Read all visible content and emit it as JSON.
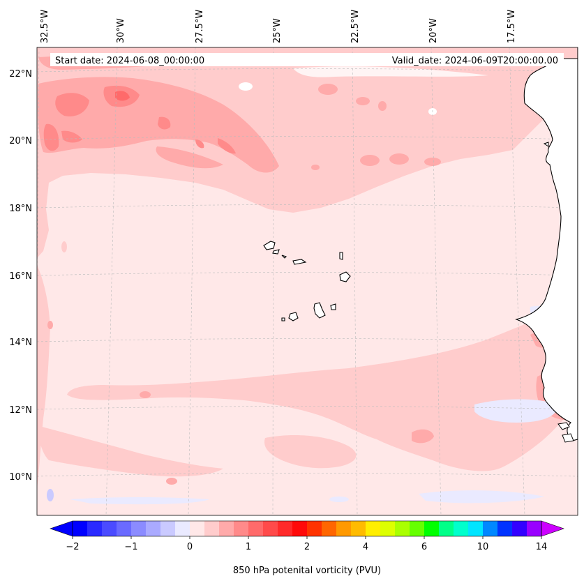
{
  "map": {
    "info": {
      "start_date": "Start date: 2024-06-08_00:00:00",
      "valid_date": "Valid_date: 2024-06-09T20:00:00.00"
    },
    "lon_labels": [
      "32.5°W",
      "30°W",
      "27.5°W",
      "25°W",
      "22.5°W",
      "20°W",
      "17.5°W"
    ],
    "lat_labels": [
      "22°N",
      "20°N",
      "18°N",
      "16°N",
      "14°N",
      "12°N",
      "10°N"
    ]
  },
  "colorbar": {
    "label": "850 hPa potenital vorticity (PVU)",
    "tick_labels": [
      "−2",
      "−1",
      "0",
      "1",
      "2",
      "4",
      "6",
      "10",
      "14"
    ],
    "colors": [
      "#0000ff",
      "#2a2aff",
      "#4b4bff",
      "#6a6aff",
      "#8b8bff",
      "#aaaaff",
      "#cacaff",
      "#eaeaff",
      "#ffe8e8",
      "#ffcccc",
      "#ffaaaa",
      "#ff8a8a",
      "#ff6a6a",
      "#ff4a4a",
      "#ff2a2a",
      "#ff0a0a",
      "#ff3300",
      "#ff6600",
      "#ff9900",
      "#ffbb00",
      "#ffee00",
      "#ddff00",
      "#aaff00",
      "#66ff00",
      "#00ff00",
      "#00ff88",
      "#00ffcc",
      "#00e5ff",
      "#0088ff",
      "#0033ff",
      "#3300ff",
      "#9900ff"
    ],
    "under_color": "#0000ff",
    "over_color": "#cc00ff"
  },
  "colors": {
    "background_field": "#ffe8e8",
    "light_pink": "#ffcccc",
    "medium_pink": "#ffaaaa",
    "dark_pink": "#ff8a8a",
    "red": "#ff6a6a",
    "light_blue": "#eaeaff",
    "blue": "#cacaff"
  }
}
